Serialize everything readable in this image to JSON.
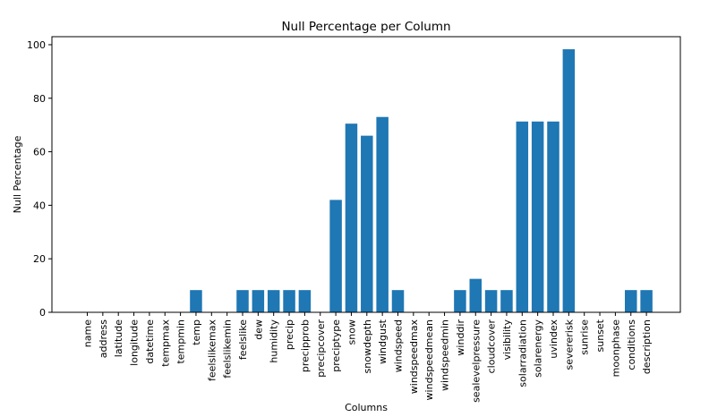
{
  "chart_data": {
    "type": "bar",
    "title": "Null Percentage per Column",
    "xlabel": "Columns",
    "ylabel": "Null Percentage",
    "ylim": [
      0,
      103
    ],
    "yticks": [
      0,
      20,
      40,
      60,
      80,
      100
    ],
    "bar_color": "#1f77b4",
    "grid": false,
    "categories": [
      "name",
      "address",
      "latitude",
      "longitude",
      "datetime",
      "tempmax",
      "tempmin",
      "temp",
      "feelslikemax",
      "feelslikemin",
      "feelslike",
      "dew",
      "humidity",
      "precip",
      "precipprob",
      "precipcover",
      "preciptype",
      "snow",
      "snowdepth",
      "windgust",
      "windspeed",
      "windspeedmax",
      "windspeedmean",
      "windspeedmin",
      "winddir",
      "sealevelpressure",
      "cloudcover",
      "visibility",
      "solarradiation",
      "solarenergy",
      "uvindex",
      "severerisk",
      "sunrise",
      "sunset",
      "moonphase",
      "conditions",
      "description"
    ],
    "values": [
      0,
      0,
      0,
      0,
      0,
      0,
      0,
      8.3,
      0,
      0,
      8.3,
      8.3,
      8.3,
      8.3,
      8.3,
      0,
      42,
      70.5,
      66,
      73,
      8.3,
      0,
      0,
      0,
      8.3,
      12.5,
      8.3,
      8.3,
      71.3,
      71.3,
      71.3,
      98.3,
      0,
      0,
      0,
      8.3,
      8.3
    ]
  }
}
